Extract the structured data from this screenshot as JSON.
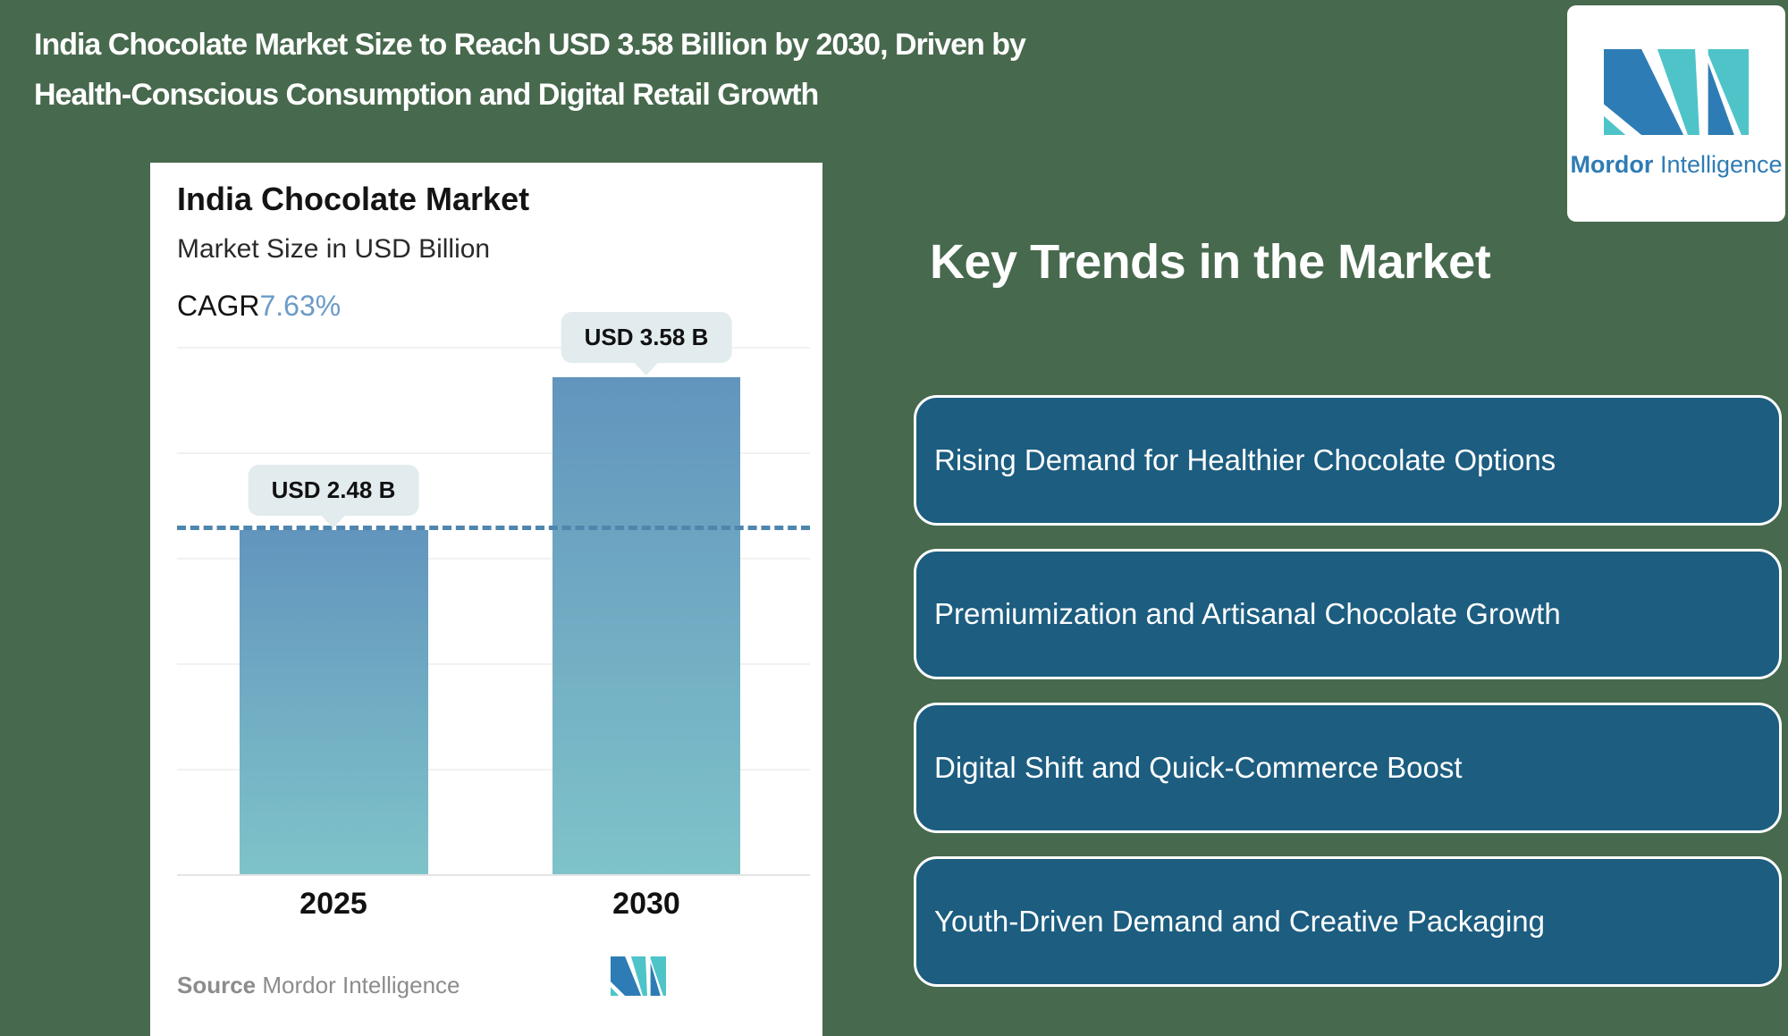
{
  "page": {
    "title_line1": "India Chocolate Market Size to Reach USD 3.58 Billion by 2030, Driven by",
    "title_line2": "Health-Conscious Consumption and Digital Retail Growth"
  },
  "logo": {
    "brand_bold": "Mordor",
    "brand_regular": "Intelligence",
    "blue": "#2E7CB5",
    "teal": "#4EC4C9"
  },
  "chart_card": {
    "title": "India Chocolate Market",
    "subtitle": "Market Size in USD Billion",
    "cagr_label": "CAGR",
    "cagr_value": "7.63%",
    "source_label": "Source",
    "source_value": "Mordor Intelligence"
  },
  "chart_data": {
    "type": "bar",
    "title": "India Chocolate Market",
    "ylabel": "Market Size in USD Billion",
    "categories": [
      "2025",
      "2030"
    ],
    "values": [
      2.48,
      3.58
    ],
    "value_labels": [
      "USD 2.48 B",
      "USD 3.58 B"
    ],
    "cagr": "7.63%",
    "ylim": [
      0,
      3.8
    ],
    "grid": true,
    "legend": false,
    "reference_line_value": 2.48,
    "bar_gradient_top": "#6295BD",
    "bar_gradient_bottom": "#7FC3C9",
    "reference_line_color": "#4E86AD"
  },
  "key_trends": {
    "heading": "Key Trends in the Market",
    "items": [
      "Rising Demand for Healthier Chocolate Options",
      "Premiumization and Artisanal Chocolate Growth",
      "Digital Shift and Quick-Commerce Boost",
      "Youth-Driven Demand and Creative Packaging"
    ]
  },
  "colors": {
    "background_green": "#47694D",
    "trend_box_blue": "#1C5D80",
    "tooltip_bg": "#E2EBEE",
    "cagr_blue": "#6B9BC7"
  }
}
